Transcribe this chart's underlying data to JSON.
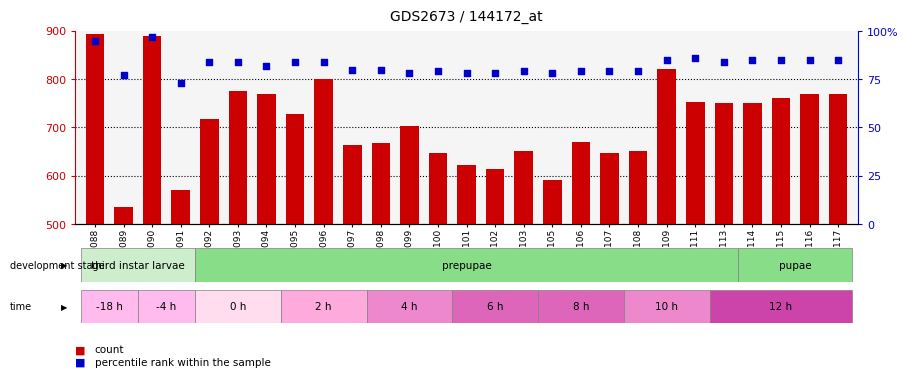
{
  "title": "GDS2673 / 144172_at",
  "samples": [
    "GSM67088",
    "GSM67089",
    "GSM67090",
    "GSM67091",
    "GSM67092",
    "GSM67093",
    "GSM67094",
    "GSM67095",
    "GSM67096",
    "GSM67097",
    "GSM67098",
    "GSM67099",
    "GSM67100",
    "GSM67101",
    "GSM67102",
    "GSM67103",
    "GSM67105",
    "GSM67106",
    "GSM67107",
    "GSM67108",
    "GSM67109",
    "GSM67111",
    "GSM67113",
    "GSM67114",
    "GSM67115",
    "GSM67116",
    "GSM67117"
  ],
  "counts": [
    893,
    535,
    889,
    571,
    718,
    775,
    770,
    727,
    800,
    663,
    668,
    703,
    647,
    622,
    614,
    651,
    592,
    670,
    648,
    651,
    820,
    752,
    750,
    751,
    762,
    770,
    770
  ],
  "percentile": [
    95,
    77,
    97,
    73,
    84,
    84,
    82,
    84,
    84,
    80,
    80,
    78,
    79,
    78,
    78,
    79,
    78,
    79,
    79,
    79,
    85,
    86,
    84,
    85,
    85,
    85,
    85
  ],
  "bar_color": "#cc0000",
  "dot_color": "#0000cc",
  "ylim_left": [
    500,
    900
  ],
  "ylim_right": [
    0,
    100
  ],
  "yticks_left": [
    500,
    600,
    700,
    800,
    900
  ],
  "yticks_right": [
    0,
    25,
    50,
    75,
    100
  ],
  "grid_values": [
    600,
    700,
    800
  ],
  "plot_bg": "#f5f5f5",
  "dev_segments": [
    {
      "text": "third instar larvae",
      "color": "#cceecc",
      "start": 0,
      "end": 4
    },
    {
      "text": "prepupae",
      "color": "#88dd88",
      "start": 4,
      "end": 23
    },
    {
      "text": "pupae",
      "color": "#88dd88",
      "start": 23,
      "end": 27
    }
  ],
  "time_segments": [
    {
      "text": "-18 h",
      "color": "#ffbbee",
      "start": 0,
      "end": 2
    },
    {
      "text": "-4 h",
      "color": "#ffbbee",
      "start": 2,
      "end": 4
    },
    {
      "text": "0 h",
      "color": "#ffddee",
      "start": 4,
      "end": 7
    },
    {
      "text": "2 h",
      "color": "#ffaadd",
      "start": 7,
      "end": 10
    },
    {
      "text": "4 h",
      "color": "#ee88cc",
      "start": 10,
      "end": 13
    },
    {
      "text": "6 h",
      "color": "#dd66bb",
      "start": 13,
      "end": 16
    },
    {
      "text": "8 h",
      "color": "#dd66bb",
      "start": 16,
      "end": 19
    },
    {
      "text": "10 h",
      "color": "#ee88cc",
      "start": 19,
      "end": 22
    },
    {
      "text": "12 h",
      "color": "#cc44aa",
      "start": 22,
      "end": 27
    }
  ]
}
